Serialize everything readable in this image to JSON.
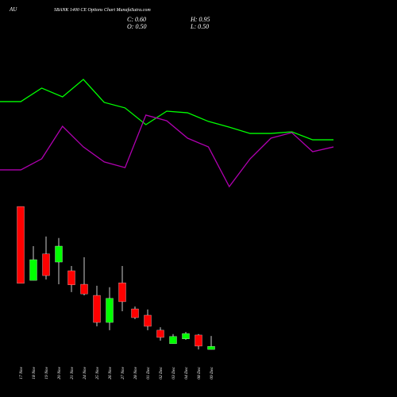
{
  "chart_data": [
    {
      "type": "candlestick",
      "title": "AU",
      "subtitle": "SBANK 1400  CE Options  Chart MunafaSutra.com",
      "annotations": [
        "C: 0.60",
        "H: 0.95",
        "O: 0.50",
        "L: 0.50"
      ],
      "categories": [
        "17 Nov",
        "18 Nov",
        "19 Nov",
        "20 Nov",
        "21 Nov",
        "24 Nov",
        "25 Nov",
        "26 Nov",
        "27 Nov",
        "28 Nov",
        "01 Dec",
        "02 Dec",
        "03 Dec",
        "04 Dec",
        "08 Dec",
        "09 Dec"
      ],
      "open": [
        5.26,
        2.8,
        3.68,
        3.41,
        3.12,
        2.67,
        2.3,
        1.4,
        2.72,
        1.85,
        1.64,
        1.14,
        0.69,
        0.85,
        0.98,
        0.5
      ],
      "high": [
        5.26,
        3.94,
        4.26,
        4.21,
        3.28,
        3.57,
        2.62,
        2.57,
        3.28,
        1.93,
        1.83,
        1.24,
        1.01,
        1.08,
        1.01,
        0.95
      ],
      "low": [
        2.7,
        2.8,
        2.83,
        2.67,
        2.41,
        2.3,
        1.27,
        1.14,
        1.77,
        1.51,
        1.14,
        0.79,
        0.69,
        0.82,
        0.5,
        0.5
      ],
      "close": [
        2.7,
        3.49,
        2.96,
        3.94,
        2.65,
        2.35,
        1.4,
        2.2,
        2.09,
        1.56,
        1.27,
        0.9,
        0.93,
        1.03,
        0.61,
        0.6
      ],
      "up_color": "#00ff00",
      "down_color": "#ff0000",
      "ylim": [
        0,
        5.5
      ]
    },
    {
      "type": "line",
      "series": [
        {
          "color": "#00ff00",
          "values": [
            71.8,
            71.8,
            81.8,
            75.3,
            88.2,
            71.2,
            67.1,
            54.7,
            64.7,
            63.5,
            57.1,
            52.9,
            48.2,
            48.2,
            49.4,
            43.5,
            43.5
          ]
        },
        {
          "color": "#b000b0",
          "values": [
            21.2,
            21.2,
            29.4,
            53.5,
            38.2,
            27.1,
            22.9,
            61.8,
            57.6,
            44.7,
            38.2,
            8.8,
            29.4,
            44.7,
            48.8,
            34.7,
            38.2
          ]
        }
      ],
      "ylim": [
        0,
        100
      ]
    }
  ]
}
